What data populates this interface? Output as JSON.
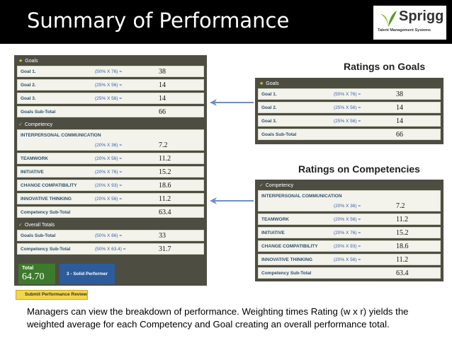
{
  "header": {
    "title": "Summary of Performance",
    "logo": {
      "name": "Sprigg",
      "tagline": "Talent Management Systems"
    }
  },
  "scorecard": {
    "goals": {
      "heading": "Goals",
      "rows": [
        {
          "label": "Goal 1.",
          "formula": "(50% X 76) =",
          "value": "38"
        },
        {
          "label": "Goal 2.",
          "formula": "(25% X 56) =",
          "value": "14"
        },
        {
          "label": "Goal 3.",
          "formula": "(25% X 56) =",
          "value": "14"
        }
      ],
      "subtotal": {
        "label": "Goals Sub-Total",
        "value": "66"
      }
    },
    "competency": {
      "heading": "Competency",
      "rows": [
        {
          "label": "INTERPERSONAL COMMUNICATION",
          "formula": "(20% X 36) =",
          "value": "7.2"
        },
        {
          "label": "TEAMWORK",
          "formula": "(20% X 56) =",
          "value": "11.2"
        },
        {
          "label": "INITIATIVE",
          "formula": "(20% X 76) =",
          "value": "15.2"
        },
        {
          "label": "CHANGE COMPATIBILITY",
          "formula": "(20% X 93) =",
          "value": "18.6"
        },
        {
          "label": "INNOVATIVE THINKING",
          "formula": "(20% X 56) =",
          "value": "11.2"
        }
      ],
      "subtotal": {
        "label": "Competency Sub-Total",
        "value": "63.4"
      }
    },
    "overall": {
      "heading": "Overall Totals",
      "rows": [
        {
          "label": "Goals Sub-Total",
          "formula": "(50% X 66) =",
          "value": "33"
        },
        {
          "label": "Competency Sub-Total",
          "formula": "(50% X 63.4) =",
          "value": "31.7"
        }
      ]
    },
    "total": {
      "label": "Total",
      "value": "64.70"
    },
    "rating": "3 - Solid Performer",
    "submit": "Submit Performance Review"
  },
  "callouts": {
    "goals": "Ratings on Goals",
    "competencies": "Ratings on Competencies"
  },
  "caption": "Managers can view the breakdown of performance.  Weighting times Rating (w x r) yields the weighted average for each Competency and Goal creating an overall performance total."
}
